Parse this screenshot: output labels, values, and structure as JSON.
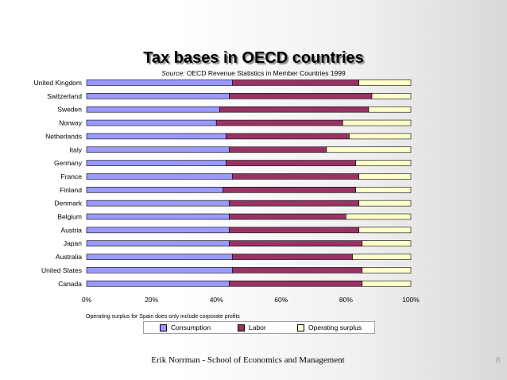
{
  "slide": {
    "title": "Tax bases in OECD countries",
    "source_label": "Source:",
    "source_text": "OECD Revenue Statistics in Member Countries 1999",
    "note": "Operating surplus for Spain does only include corporate profits",
    "footer": "Erik Norrman - School of Economics and Management",
    "page_number": "8"
  },
  "chart_data": {
    "type": "bar",
    "orientation": "horizontal",
    "stacked": "percent",
    "categories": [
      "United Kingdom",
      "Switzerland",
      "Sweden",
      "Norway",
      "Netherlands",
      "Italy",
      "Germany",
      "France",
      "Finland",
      "Denmark",
      "Belgium",
      "Austria",
      "Japan",
      "Australia",
      "United States",
      "Canada"
    ],
    "series": [
      {
        "name": "Consumption",
        "color": "#9999ff",
        "values": [
          45,
          44,
          41,
          40,
          43,
          44,
          43,
          45,
          42,
          44,
          44,
          44,
          44,
          45,
          45,
          44
        ]
      },
      {
        "name": "Labor",
        "color": "#993366",
        "values": [
          39,
          44,
          46,
          39,
          38,
          30,
          40,
          39,
          41,
          40,
          36,
          40,
          41,
          37,
          40,
          41
        ]
      },
      {
        "name": "Operating surplus",
        "color": "#ffffcc",
        "values": [
          16,
          12,
          13,
          21,
          19,
          26,
          17,
          16,
          17,
          16,
          20,
          16,
          15,
          18,
          15,
          15
        ]
      }
    ],
    "x_ticks": [
      "0%",
      "20%",
      "40%",
      "60%",
      "80%",
      "100%"
    ],
    "xlim": [
      0,
      100
    ],
    "legend_position": "bottom",
    "grid": false
  }
}
